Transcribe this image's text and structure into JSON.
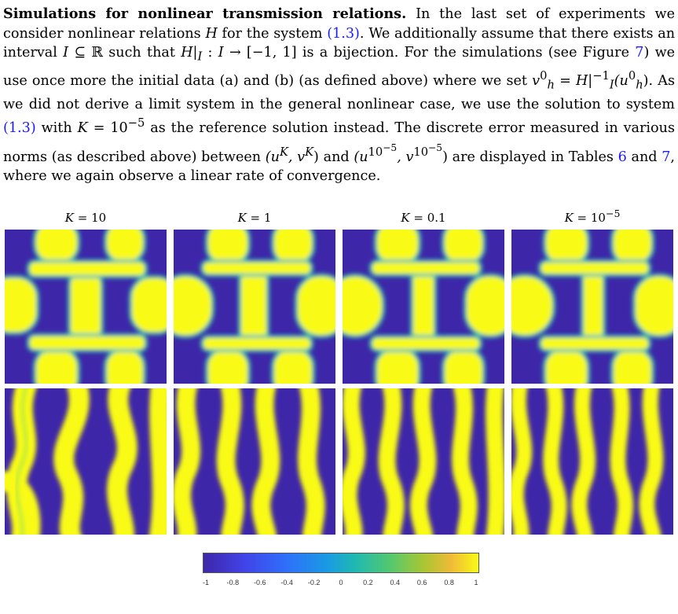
{
  "paragraph": {
    "heading": "Simulations for nonlinear transmission relations.",
    "line1_rest": "In the last set of experiments we consider nonlinear relations",
    "sym_H": "H",
    "line1_b": "for the system",
    "ref_1_3": "(1.3)",
    "line2_a": ". We additionally assume that there exists an interval",
    "sym_I": "I",
    "line2_b": "⊆ ℝ such that",
    "bijection": "H|",
    "sub_I": "I",
    "line2_c": ":",
    "line2_d": "→ [−1, 1] is a bijection. For the simulations (see",
    "fig_word": "Figure",
    "fig_ref": "7",
    "line3_a": ") we use once more the initial data (a) and (b) (as defined above) where we set",
    "v_h0": "v",
    "v_sub": "h",
    "v_sup": "0",
    "eq_mid": "=",
    "h_inv": "H|",
    "h_inv_sup": "−1",
    "h_inv_sub": "I",
    "u_arg": "(u",
    "u_sub": "h",
    "u_sup": "0",
    "line4_a": "). As we did not derive a limit system in the general nonlinear case, we use the solution to system",
    "line4_b": "with",
    "sym_K": "K",
    "k_eq": "= 10",
    "k_exp": "−5",
    "line4_c": "as the reference solution instead. The discrete error measured in various norms (as described above) between",
    "pair1_a": "(u",
    "pair1_exp": "K",
    "pair1_b": ", v",
    "pair1_c": ")",
    "and_word": "and",
    "pair2_a": "(u",
    "pair2_exp": "10",
    "pair2_exp2": "−5",
    "pair2_b": ", v",
    "pair2_c": ")",
    "line5_a": "are displayed in Tables",
    "tab6": "6",
    "and2": "and",
    "tab7": "7",
    "line5_b": ", where we again observe a linear rate of convergence."
  },
  "columns": [
    {
      "label_prefix": "K",
      "label_eq": " = 10",
      "label_exp": ""
    },
    {
      "label_prefix": "K",
      "label_eq": " = 1",
      "label_exp": ""
    },
    {
      "label_prefix": "K",
      "label_eq": " = 0.1",
      "label_exp": ""
    },
    {
      "label_prefix": "K",
      "label_eq": " = 10",
      "label_exp": "−5"
    }
  ],
  "colorbar": {
    "ticks": [
      "-1",
      "-0.8",
      "-0.6",
      "-0.4",
      "-0.2",
      "0",
      "0.2",
      "0.4",
      "0.6",
      "0.8",
      "1"
    ],
    "range": [
      -1,
      1
    ],
    "colors": {
      "low": "#3e26a8",
      "mid": "#1fb9b2",
      "high": "#f9fb15"
    }
  }
}
